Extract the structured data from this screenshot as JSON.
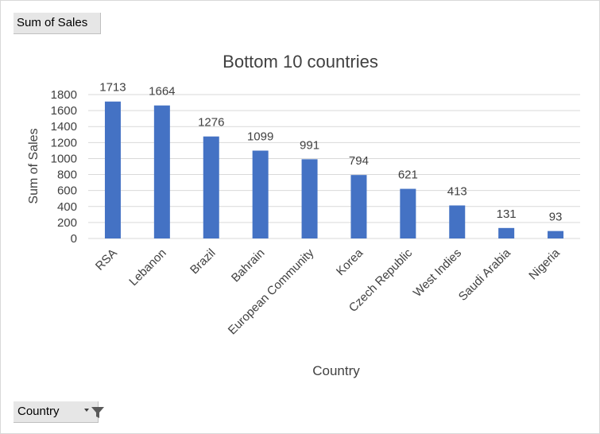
{
  "pivot": {
    "values_button_label": "Sum of Sales",
    "axis_button_label": "Country"
  },
  "icons": {
    "dropdown": "chevron-down-icon",
    "filter": "filter-icon"
  },
  "colors": {
    "bar": "#4472C4",
    "grid": "#d9d9d9",
    "text": "#404040"
  },
  "chart_data": {
    "type": "bar",
    "title": "Bottom 10 countries",
    "xlabel": "Country",
    "ylabel": "Sum of Sales",
    "categories": [
      "RSA",
      "Lebanon",
      "Brazil",
      "Bahrain",
      "European Community",
      "Korea",
      "Czech Republic",
      "West Indies",
      "Saudi Arabia",
      "Nigeria"
    ],
    "values": [
      1713,
      1664,
      1276,
      1099,
      991,
      794,
      621,
      413,
      131,
      93
    ],
    "ylim": [
      0,
      1800
    ],
    "yticks": [
      0,
      200,
      400,
      600,
      800,
      1000,
      1200,
      1400,
      1600,
      1800
    ],
    "grid": true,
    "legend": "none",
    "data_labels": true
  }
}
